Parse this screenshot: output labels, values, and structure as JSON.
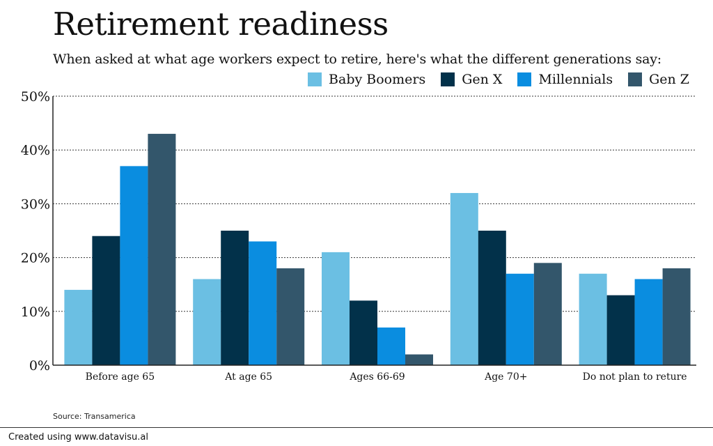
{
  "chart_data": {
    "type": "bar",
    "title": "Retirement readiness",
    "subtitle": "When asked at what age workers expect to retire, here's what the different generations say:",
    "categories": [
      "Before age 65",
      "At age 65",
      "Ages 66-69",
      "Age 70+",
      "Do not plan to reture"
    ],
    "series": [
      {
        "name": "Baby Boomers",
        "color": "#6bbfe3",
        "values": [
          14,
          16,
          21,
          32,
          17
        ]
      },
      {
        "name": "Gen X",
        "color": "#02314a",
        "values": [
          24,
          25,
          12,
          25,
          13
        ]
      },
      {
        "name": "Millennials",
        "color": "#0a8de0",
        "values": [
          37,
          23,
          7,
          17,
          16
        ]
      },
      {
        "name": "Gen Z",
        "color": "#33566b",
        "values": [
          43,
          18,
          2,
          19,
          18
        ]
      }
    ],
    "ylim": [
      0,
      50
    ],
    "yticks": [
      0,
      10,
      20,
      30,
      40,
      50
    ],
    "ytick_labels": [
      "0%",
      "10%",
      "20%",
      "30%",
      "40%",
      "50%"
    ],
    "grid": true,
    "legend_position": "top-right",
    "xlabel": "",
    "ylabel": ""
  },
  "source": "Source: Transamerica",
  "footer": "Created using www.datavisu.al"
}
